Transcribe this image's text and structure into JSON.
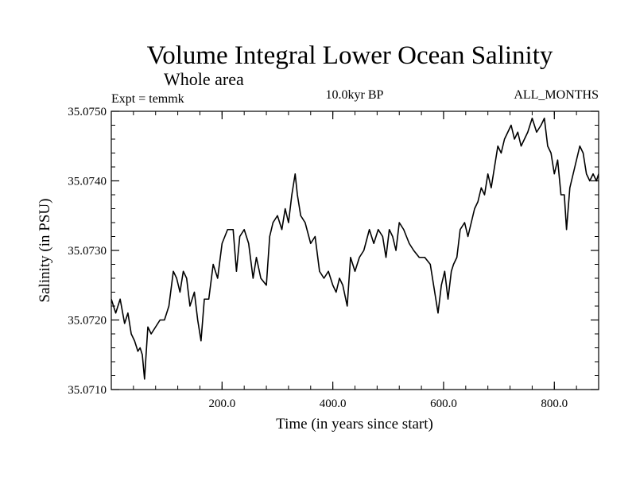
{
  "chart_data": {
    "type": "line",
    "title": "Volume Integral Lower Ocean Salinity",
    "subtitle": "Whole area",
    "info_left": "Expt = temmk",
    "info_center": "10.0kyr BP",
    "info_right": "ALL_MONTHS",
    "xlabel": "Time (in years since start)",
    "ylabel": "Salinity (in PSU)",
    "xlim": [
      0,
      880
    ],
    "ylim": [
      35.071,
      35.075
    ],
    "x_ticks": [
      {
        "value": 200,
        "label": "200.0"
      },
      {
        "value": 400,
        "label": "400.0"
      },
      {
        "value": 600,
        "label": "600.0"
      },
      {
        "value": 800,
        "label": "800.0"
      }
    ],
    "y_ticks": [
      {
        "value": 35.071,
        "label": "35.0710"
      },
      {
        "value": 35.072,
        "label": "35.0720"
      },
      {
        "value": 35.073,
        "label": "35.0730"
      },
      {
        "value": 35.074,
        "label": "35.0740"
      },
      {
        "value": 35.075,
        "label": "35.0750"
      }
    ],
    "x_minor_step": 40,
    "y_minor_step": 0.0002,
    "grid": false,
    "series": [
      {
        "name": "salinity",
        "color": "#000000",
        "x": [
          0,
          8,
          16,
          24,
          30,
          36,
          42,
          48,
          52,
          56,
          60,
          66,
          72,
          80,
          88,
          96,
          104,
          112,
          118,
          124,
          130,
          136,
          142,
          150,
          156,
          162,
          168,
          176,
          184,
          192,
          200,
          210,
          220,
          226,
          232,
          240,
          248,
          256,
          262,
          270,
          280,
          286,
          292,
          300,
          308,
          314,
          320,
          326,
          332,
          336,
          342,
          350,
          360,
          368,
          376,
          384,
          392,
          400,
          406,
          412,
          418,
          426,
          432,
          440,
          448,
          456,
          466,
          474,
          482,
          490,
          496,
          502,
          508,
          514,
          520,
          528,
          538,
          546,
          556,
          566,
          576,
          584,
          590,
          596,
          602,
          608,
          614,
          618,
          624,
          630,
          638,
          644,
          650,
          656,
          662,
          668,
          674,
          680,
          686,
          692,
          698,
          704,
          710,
          716,
          722,
          728,
          734,
          740,
          746,
          752,
          760,
          768,
          776,
          782,
          788,
          794,
          800,
          806,
          812,
          818,
          822,
          828,
          834,
          840,
          846,
          852,
          858,
          864,
          870,
          876,
          880
        ],
        "values": [
          35.0723,
          35.0721,
          35.0723,
          35.07195,
          35.0721,
          35.0718,
          35.0717,
          35.07155,
          35.0716,
          35.0715,
          35.07115,
          35.0719,
          35.0718,
          35.0719,
          35.072,
          35.072,
          35.0722,
          35.0727,
          35.0726,
          35.0724,
          35.0727,
          35.0726,
          35.0722,
          35.0724,
          35.072,
          35.0717,
          35.0723,
          35.0723,
          35.0728,
          35.0726,
          35.0731,
          35.0733,
          35.0733,
          35.0727,
          35.0732,
          35.0733,
          35.0731,
          35.0726,
          35.0729,
          35.0726,
          35.0725,
          35.0732,
          35.0734,
          35.0735,
          35.0733,
          35.0736,
          35.0734,
          35.0738,
          35.0741,
          35.0738,
          35.0735,
          35.0734,
          35.0731,
          35.0732,
          35.0727,
          35.0726,
          35.0727,
          35.0725,
          35.0724,
          35.0726,
          35.0725,
          35.0722,
          35.0729,
          35.0727,
          35.0729,
          35.073,
          35.0733,
          35.0731,
          35.0733,
          35.0732,
          35.0729,
          35.0733,
          35.0732,
          35.073,
          35.0734,
          35.0733,
          35.0731,
          35.073,
          35.0729,
          35.0729,
          35.0728,
          35.0724,
          35.0721,
          35.0725,
          35.0727,
          35.0723,
          35.0727,
          35.0728,
          35.0729,
          35.0733,
          35.0734,
          35.0732,
          35.0734,
          35.0736,
          35.0737,
          35.0739,
          35.0738,
          35.0741,
          35.0739,
          35.0742,
          35.0745,
          35.0744,
          35.0746,
          35.0747,
          35.0748,
          35.0746,
          35.0747,
          35.0745,
          35.0746,
          35.0747,
          35.0749,
          35.0747,
          35.0748,
          35.0749,
          35.0745,
          35.0744,
          35.0741,
          35.0743,
          35.0738,
          35.0738,
          35.0733,
          35.0739,
          35.0741,
          35.0743,
          35.0745,
          35.0744,
          35.0741,
          35.074,
          35.0741,
          35.074,
          35.0741
        ]
      }
    ]
  }
}
